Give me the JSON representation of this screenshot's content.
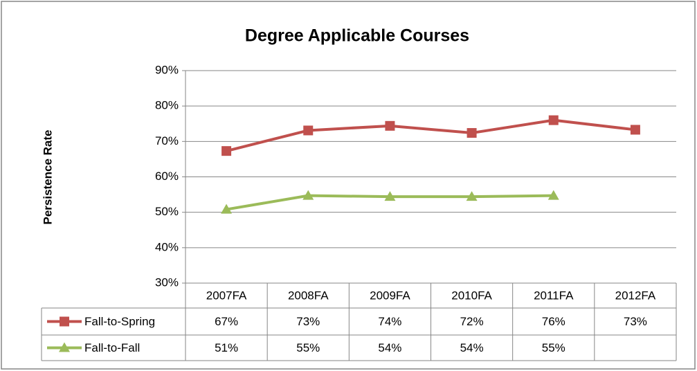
{
  "chart_data": {
    "type": "line",
    "title": "Degree Applicable Courses",
    "y_label": "Persistence Rate",
    "categories": [
      "2007FA",
      "2008FA",
      "2009FA",
      "2010FA",
      "2011FA",
      "2012FA"
    ],
    "series": [
      {
        "name": "Fall-to-Spring",
        "color": "#c0504d",
        "marker": "square",
        "values": [
          67.3,
          73.1,
          74.4,
          72.4,
          76.0,
          73.3
        ],
        "value_labels": [
          "67%",
          "73%",
          "74%",
          "72%",
          "76%",
          "73%"
        ]
      },
      {
        "name": "Fall-to-Fall",
        "color": "#9bbb59",
        "marker": "triangle",
        "values": [
          50.8,
          54.7,
          54.4,
          54.4,
          54.7,
          null
        ],
        "value_labels": [
          "51%",
          "55%",
          "54%",
          "54%",
          "55%",
          null
        ]
      }
    ],
    "ylim": [
      30,
      90
    ],
    "yticks": [
      {
        "value": 30,
        "label": "30%"
      },
      {
        "value": 40,
        "label": "40%"
      },
      {
        "value": 50,
        "label": "50%"
      },
      {
        "value": 60,
        "label": "60%"
      },
      {
        "value": 70,
        "label": "70%"
      },
      {
        "value": 80,
        "label": "80%"
      },
      {
        "value": 90,
        "label": "90%"
      }
    ],
    "grid": true,
    "data_table": true
  }
}
